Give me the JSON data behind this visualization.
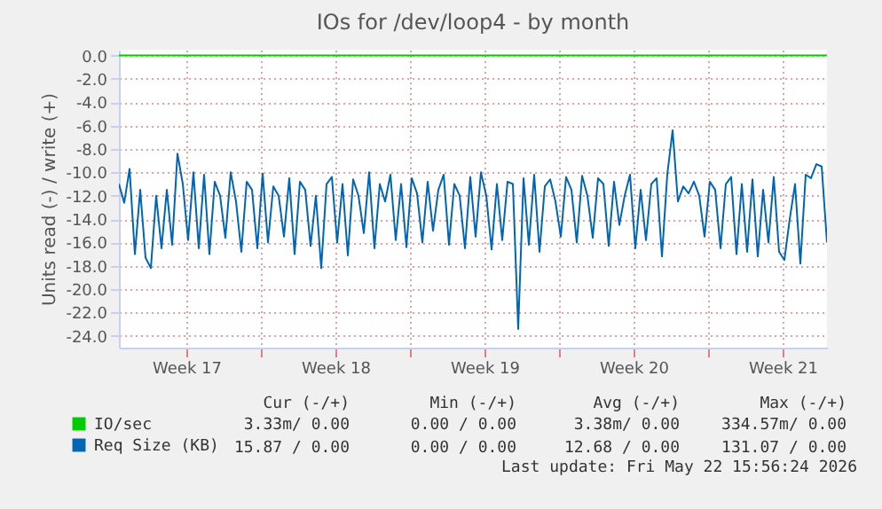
{
  "chart_data": {
    "type": "line",
    "title": "IOs for /dev/loop4 - by month",
    "ylabel": "Units read (-) / write (+)",
    "x": [
      "2026-04-19T12:00",
      "2026-04-19T18:00",
      "2026-04-20T00:00",
      "2026-04-20T06:00",
      "2026-04-20T12:00",
      "2026-04-20T18:00",
      "2026-04-21T00:00",
      "2026-04-21T06:00",
      "2026-04-21T12:00",
      "2026-04-21T18:00",
      "2026-04-22T00:00",
      "2026-04-22T06:00",
      "2026-04-22T12:00",
      "2026-04-22T18:00",
      "2026-04-23T00:00",
      "2026-04-23T06:00",
      "2026-04-23T12:00",
      "2026-04-23T18:00",
      "2026-04-24T00:00",
      "2026-04-24T06:00",
      "2026-04-24T12:00",
      "2026-04-24T18:00",
      "2026-04-25T00:00",
      "2026-04-25T06:00",
      "2026-04-25T12:00",
      "2026-04-25T18:00",
      "2026-04-26T00:00",
      "2026-04-26T06:00",
      "2026-04-26T12:00",
      "2026-04-26T18:00",
      "2026-04-27T00:00",
      "2026-04-27T06:00",
      "2026-04-27T12:00",
      "2026-04-27T18:00",
      "2026-04-28T00:00",
      "2026-04-28T06:00",
      "2026-04-28T12:00",
      "2026-04-28T18:00",
      "2026-04-29T00:00",
      "2026-04-29T06:00",
      "2026-04-29T12:00",
      "2026-04-29T18:00",
      "2026-04-30T00:00",
      "2026-04-30T06:00",
      "2026-04-30T12:00",
      "2026-04-30T18:00",
      "2026-05-01T00:00",
      "2026-05-01T06:00",
      "2026-05-01T12:00",
      "2026-05-01T18:00",
      "2026-05-02T00:00",
      "2026-05-02T06:00",
      "2026-05-02T12:00",
      "2026-05-02T18:00",
      "2026-05-03T00:00",
      "2026-05-03T06:00",
      "2026-05-03T12:00",
      "2026-05-03T18:00",
      "2026-05-04T00:00",
      "2026-05-04T06:00",
      "2026-05-04T12:00",
      "2026-05-04T18:00",
      "2026-05-05T00:00",
      "2026-05-05T06:00",
      "2026-05-05T12:00",
      "2026-05-05T18:00",
      "2026-05-06T00:00",
      "2026-05-06T06:00",
      "2026-05-06T12:00",
      "2026-05-06T18:00",
      "2026-05-07T00:00",
      "2026-05-07T06:00",
      "2026-05-07T12:00",
      "2026-05-07T18:00",
      "2026-05-08T00:00",
      "2026-05-08T06:00",
      "2026-05-08T12:00",
      "2026-05-08T18:00",
      "2026-05-09T00:00",
      "2026-05-09T06:00",
      "2026-05-09T12:00",
      "2026-05-09T18:00",
      "2026-05-10T00:00",
      "2026-05-10T06:00",
      "2026-05-10T12:00",
      "2026-05-10T18:00",
      "2026-05-11T00:00",
      "2026-05-11T06:00",
      "2026-05-11T12:00",
      "2026-05-11T18:00",
      "2026-05-12T00:00",
      "2026-05-12T06:00",
      "2026-05-12T12:00",
      "2026-05-12T18:00",
      "2026-05-13T00:00",
      "2026-05-13T06:00",
      "2026-05-13T12:00",
      "2026-05-13T18:00",
      "2026-05-14T00:00",
      "2026-05-14T06:00",
      "2026-05-14T12:00",
      "2026-05-14T18:00",
      "2026-05-15T00:00",
      "2026-05-15T06:00",
      "2026-05-15T12:00",
      "2026-05-15T18:00",
      "2026-05-16T00:00",
      "2026-05-16T06:00",
      "2026-05-16T12:00",
      "2026-05-16T18:00",
      "2026-05-17T00:00",
      "2026-05-17T06:00",
      "2026-05-17T12:00",
      "2026-05-17T18:00",
      "2026-05-18T00:00",
      "2026-05-18T06:00",
      "2026-05-18T12:00",
      "2026-05-18T18:00",
      "2026-05-19T00:00",
      "2026-05-19T06:00",
      "2026-05-19T12:00",
      "2026-05-19T18:00",
      "2026-05-20T00:00",
      "2026-05-20T06:00",
      "2026-05-20T12:00",
      "2026-05-20T18:00",
      "2026-05-21T00:00",
      "2026-05-21T06:00",
      "2026-05-21T12:00",
      "2026-05-21T18:00",
      "2026-05-22T00:00",
      "2026-05-22T06:00",
      "2026-05-22T12:00",
      "2026-05-22T18:00"
    ],
    "series": [
      {
        "name": "IO/sec",
        "color": "#00cc00",
        "x": [
          "2026-04-19T12:00",
          "2026-05-22T18:00"
        ],
        "values": [
          0,
          0
        ]
      },
      {
        "name": "Req Size (KB)",
        "color": "#0066b3",
        "values": [
          -11,
          -12.6,
          -9.7,
          -17,
          -11.5,
          -17.3,
          -18.2,
          -12,
          -16.5,
          -11.5,
          -16.2,
          -8.4,
          -11,
          -15.8,
          -10,
          -16.5,
          -10.2,
          -17,
          -10.8,
          -12,
          -15.6,
          -10,
          -12.5,
          -16.8,
          -10.8,
          -11.5,
          -16.5,
          -10.1,
          -16,
          -11.2,
          -12,
          -15.5,
          -10.5,
          -17,
          -10.8,
          -11.5,
          -16.3,
          -12,
          -18.2,
          -11,
          -10.4,
          -16,
          -11,
          -17.1,
          -10.6,
          -12,
          -15.2,
          -10,
          -16.5,
          -11,
          -12.5,
          -10.2,
          -15.8,
          -11,
          -16.4,
          -10.5,
          -11.8,
          -16,
          -10.8,
          -15,
          -11.5,
          -10.2,
          -16.2,
          -11,
          -12,
          -16.5,
          -10.4,
          -15.5,
          -10,
          -12,
          -16.6,
          -11,
          -15.8,
          -10.8,
          -11,
          -23.4,
          -10.5,
          -16.2,
          -10.2,
          -16.8,
          -11.2,
          -10.6,
          -12.5,
          -15.5,
          -10.4,
          -11.5,
          -16,
          -10.3,
          -12,
          -15.6,
          -10.5,
          -11,
          -16.3,
          -10.8,
          -14.5,
          -12,
          -10.2,
          -16.5,
          -11.5,
          -15.8,
          -11,
          -10.5,
          -17.2,
          -10.2,
          -6.4,
          -12.5,
          -11.2,
          -11.8,
          -10.8,
          -12,
          -15.5,
          -10.8,
          -11.5,
          -16.5,
          -11,
          -10.4,
          -17,
          -11,
          -16.8,
          -10.6,
          -17.2,
          -11.5,
          -16,
          -10.4,
          -16.8,
          -17.5,
          -14,
          -11,
          -17.8,
          -10.2,
          -10.5,
          -9.3,
          -9.5,
          -16
        ]
      }
    ],
    "xlim": [
      "2026-04-19T12:00",
      "2026-05-22T18:00"
    ],
    "xticks": [
      {
        "value": "2026-04-22T16:00",
        "label": "Week 17"
      },
      {
        "value": "2026-04-26T04:00",
        "label": null
      },
      {
        "value": "2026-04-29T16:00",
        "label": "Week 18"
      },
      {
        "value": "2026-05-03T04:00",
        "label": null
      },
      {
        "value": "2026-05-06T16:00",
        "label": "Week 19"
      },
      {
        "value": "2026-05-10T04:00",
        "label": null
      },
      {
        "value": "2026-05-13T16:00",
        "label": "Week 20"
      },
      {
        "value": "2026-05-17T04:00",
        "label": null
      },
      {
        "value": "2026-05-20T16:00",
        "label": "Week 21"
      }
    ],
    "ylim": [
      -25,
      0.5
    ],
    "yticks": [
      {
        "value": 0,
        "label": "0.0"
      },
      {
        "value": -2,
        "label": "-2.0"
      },
      {
        "value": -4,
        "label": "-4.0"
      },
      {
        "value": -6,
        "label": "-6.0"
      },
      {
        "value": -8,
        "label": "-8.0"
      },
      {
        "value": -10,
        "label": "-10.0"
      },
      {
        "value": -12,
        "label": "-12.0"
      },
      {
        "value": -14,
        "label": "-14.0"
      },
      {
        "value": -16,
        "label": "-16.0"
      },
      {
        "value": -18,
        "label": "-18.0"
      },
      {
        "value": -20,
        "label": "-20.0"
      },
      {
        "value": -22,
        "label": "-22.0"
      },
      {
        "value": -24,
        "label": "-24.0"
      }
    ],
    "grid": true,
    "legend": "bottom left",
    "line_style": "solid",
    "annotations": [
      "Cur (-/+)",
      "Min (-/+)",
      "Avg (-/+)",
      "Max (-/+)",
      "3.33m/ 0.00",
      "0.00 / 0.00",
      "3.38m/ 0.00",
      "334.57m/ 0.00",
      "15.87 / 0.00",
      "0.00 / 0.00",
      "12.68 / 0.00",
      "131.07 / 0.00",
      "Last update: Fri May 22 15:56:24 2026"
    ]
  }
}
